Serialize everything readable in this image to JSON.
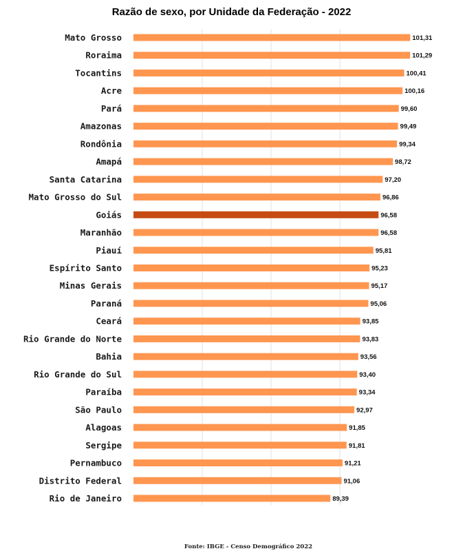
{
  "chart_data": {
    "type": "bar",
    "orientation": "horizontal",
    "title": "Razão de sexo, por Unidade da Federação - 2022",
    "source": "Fonte: IBGE - Censo Demográfico 2022",
    "colors": {
      "bar": "#ff9650",
      "highlight": "#c64b13"
    },
    "highlight_category": "Goiás",
    "grid": true,
    "xlim": [
      60,
      102
    ],
    "categories": [
      "Mato Grosso",
      "Roraima",
      "Tocantins",
      "Acre",
      "Pará",
      "Amazonas",
      "Rondônia",
      "Amapá",
      "Santa Catarina",
      "Mato Grosso do Sul",
      "Goiás",
      "Maranhão",
      "Piauí",
      "Espírito Santo",
      "Minas Gerais",
      "Paraná",
      "Ceará",
      "Rio Grande do Norte",
      "Bahia",
      "Rio Grande do Sul",
      "Paraíba",
      "São Paulo",
      "Alagoas",
      "Sergipe",
      "Pernambuco",
      "Distrito Federal",
      "Rio de Janeiro"
    ],
    "values": [
      101.31,
      101.29,
      100.41,
      100.16,
      99.6,
      99.49,
      99.34,
      98.72,
      97.2,
      96.86,
      96.58,
      96.58,
      95.81,
      95.23,
      95.17,
      95.06,
      93.85,
      93.83,
      93.56,
      93.4,
      93.34,
      92.97,
      91.85,
      91.81,
      91.21,
      91.06,
      89.39
    ],
    "value_labels": [
      "101,31",
      "101,29",
      "100,41",
      "100,16",
      "99,60",
      "99,49",
      "99,34",
      "98,72",
      "97,20",
      "96,86",
      "96,58",
      "96,58",
      "95,81",
      "95,23",
      "95,17",
      "95,06",
      "93,85",
      "93,83",
      "93,56",
      "93,40",
      "93,34",
      "92,97",
      "91,85",
      "91,81",
      "91,21",
      "91,06",
      "89,39"
    ]
  }
}
